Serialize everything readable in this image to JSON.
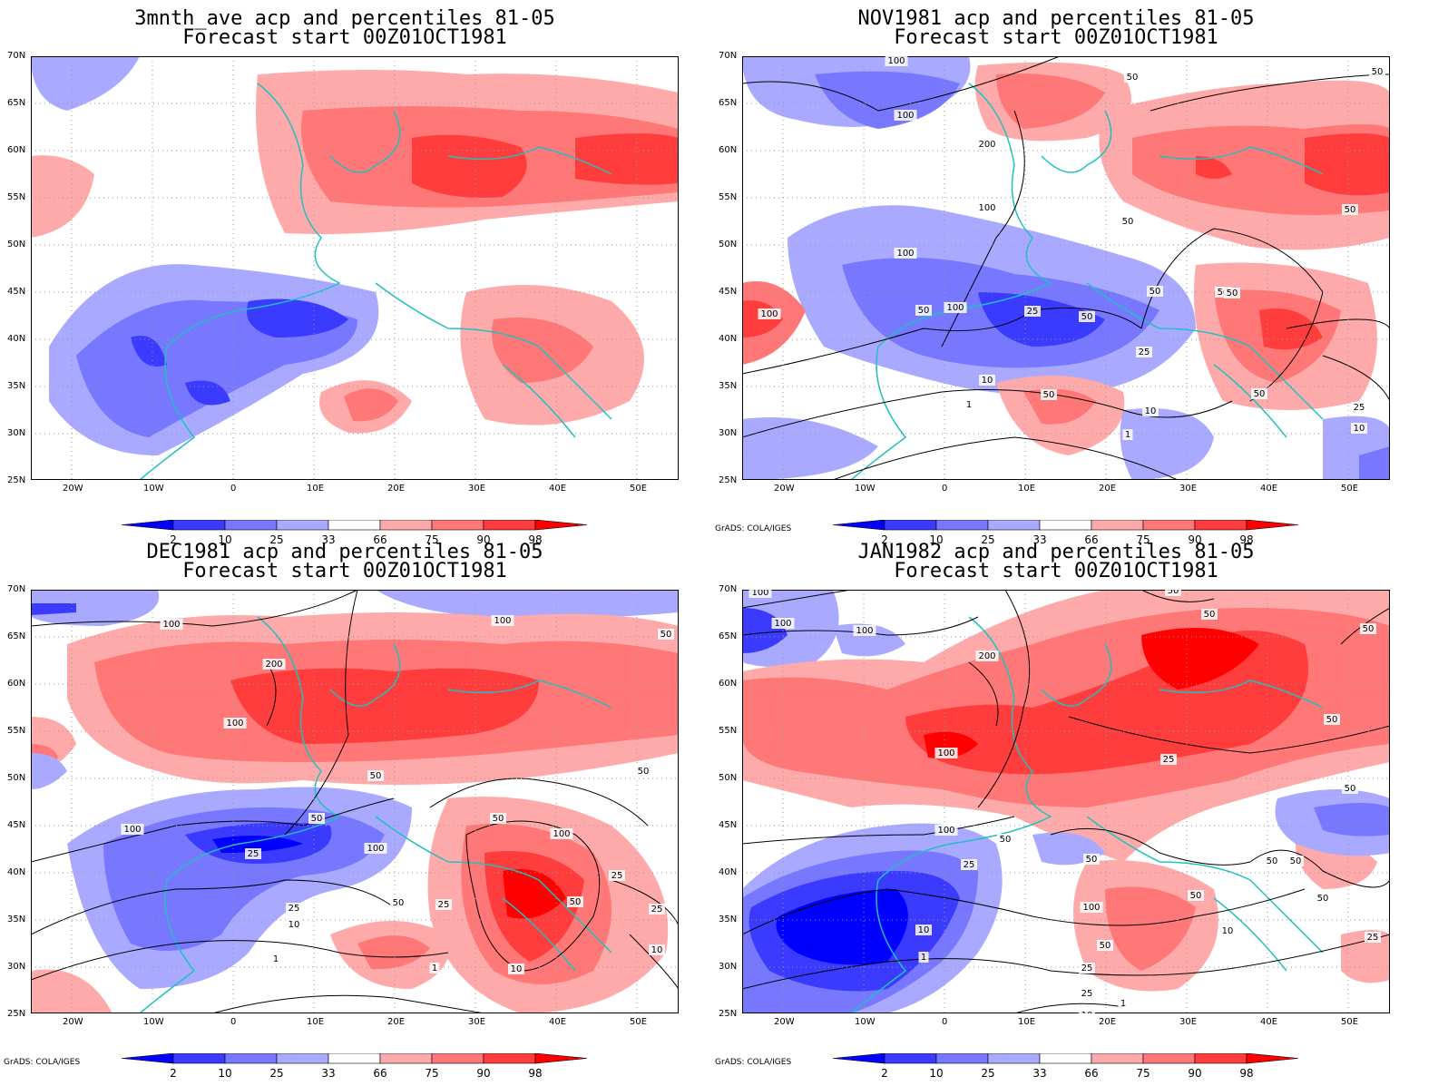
{
  "panels": [
    {
      "title": "3mnth_ave acp and percentiles 81-05",
      "subtitle": "Forecast start 00Z01OCT1981",
      "credit": ""
    },
    {
      "title": "NOV1981 acp and percentiles 81-05",
      "subtitle": "Forecast start 00Z01OCT1981",
      "credit": "GrADS: COLA/IGES"
    },
    {
      "title": "DEC1981 acp and percentiles 81-05",
      "subtitle": "Forecast start 00Z01OCT1981",
      "credit": "GrADS: COLA/IGES"
    },
    {
      "title": "JAN1982 acp and percentiles 81-05",
      "subtitle": "Forecast start 00Z01OCT1981",
      "credit": "GrADS: COLA/IGES"
    }
  ],
  "lat_labels": [
    "70N",
    "65N",
    "60N",
    "55N",
    "50N",
    "45N",
    "40N",
    "35N",
    "30N",
    "25N"
  ],
  "lon_labels": [
    "20W",
    "10W",
    "0",
    "10E",
    "20E",
    "30E",
    "40E",
    "50E"
  ],
  "colorbar": {
    "labels": [
      "2",
      "10",
      "25",
      "33",
      "66",
      "75",
      "90",
      "98"
    ],
    "colors": [
      "#0000ff",
      "#3b3bff",
      "#7777ff",
      "#a9a9ff",
      "#ffffff",
      "#ffaaaa",
      "#ff7777",
      "#ff3d3d",
      "#ff0000"
    ]
  },
  "map_style": {
    "background": "#ffffff",
    "coast_color": "#20c0c0",
    "contour_color": "#000000",
    "grid_color": "#999999"
  },
  "contour_labels": {
    "nov": [
      "100",
      "50",
      "50",
      "100",
      "200",
      "100",
      "50",
      "50",
      "100",
      "50",
      "50",
      "100",
      "25",
      "100",
      "50",
      "50",
      "25",
      "10",
      "10",
      "1",
      "1",
      "50",
      "25",
      "10",
      "50",
      "50"
    ],
    "dec": [
      "100",
      "200",
      "100",
      "50",
      "50",
      "100",
      "25",
      "100",
      "50",
      "100",
      "50",
      "25",
      "25",
      "10",
      "1",
      "1",
      "10",
      "50",
      "50",
      "25",
      "100",
      "50",
      "25",
      "10"
    ],
    "jan": [
      "100",
      "100",
      "100",
      "200",
      "100",
      "50",
      "50",
      "50",
      "50",
      "25",
      "50",
      "100",
      "50",
      "50",
      "25",
      "10",
      "1",
      "100",
      "50",
      "50",
      "50",
      "25",
      "10",
      "25",
      "10",
      "1",
      "50",
      "50",
      "25"
    ]
  }
}
